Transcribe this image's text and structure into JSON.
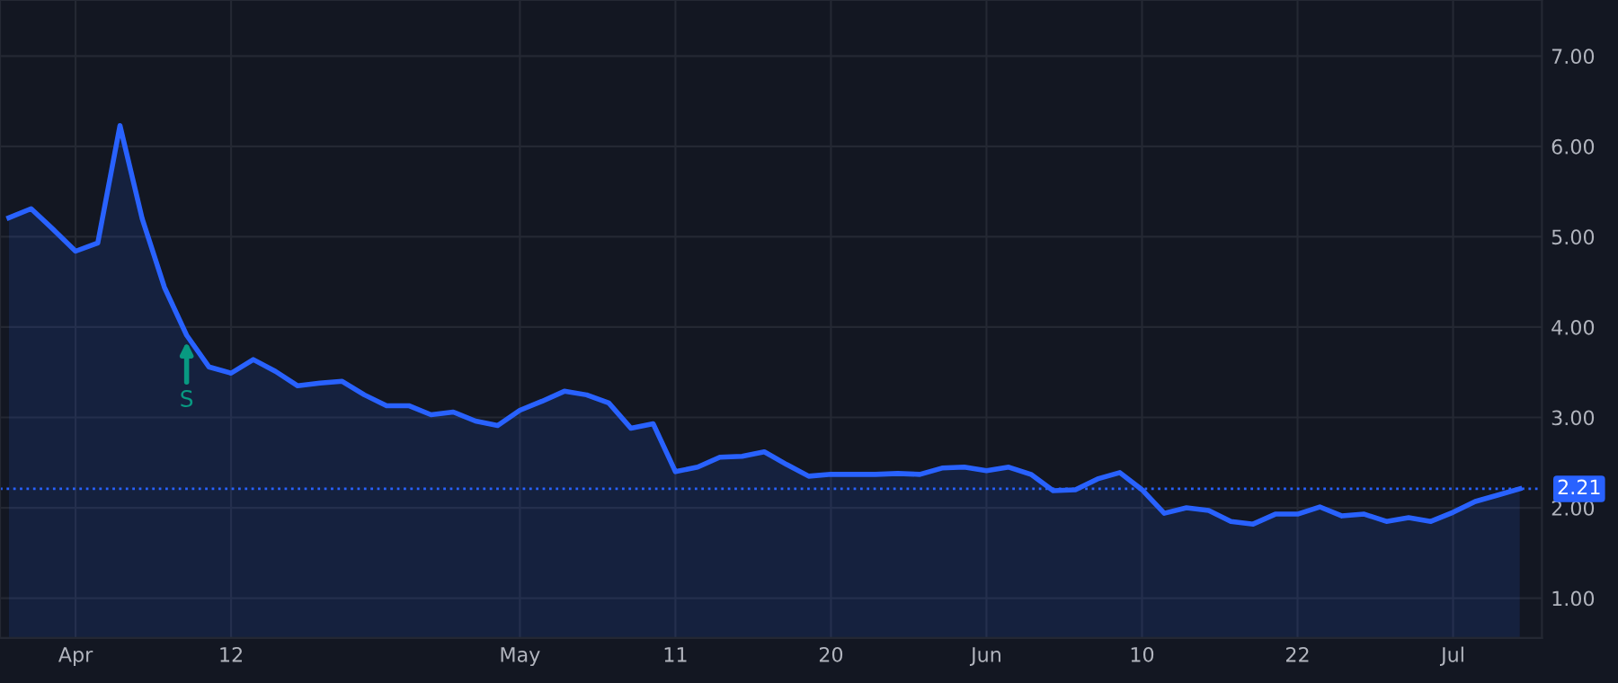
{
  "chart_data": {
    "type": "area",
    "categories": [
      null,
      null,
      null,
      "Apr",
      null,
      null,
      null,
      null,
      null,
      null,
      "12",
      null,
      null,
      null,
      null,
      null,
      null,
      null,
      null,
      null,
      null,
      null,
      null,
      "May",
      null,
      null,
      null,
      null,
      null,
      null,
      "11",
      null,
      null,
      null,
      null,
      null,
      null,
      "20",
      null,
      null,
      null,
      null,
      null,
      null,
      "Jun",
      null,
      null,
      null,
      null,
      null,
      null,
      "10",
      null,
      null,
      null,
      null,
      null,
      null,
      "22",
      null,
      null,
      null,
      null,
      null,
      null,
      "Jul",
      null,
      null,
      null
    ],
    "series": [
      {
        "color": "#2962ff",
        "values": [
          5.21,
          5.31,
          5.08,
          4.84,
          4.93,
          6.23,
          5.2,
          4.44,
          3.91,
          3.56,
          3.49,
          3.64,
          3.51,
          3.35,
          3.38,
          3.4,
          3.25,
          3.13,
          3.13,
          3.03,
          3.06,
          2.96,
          2.91,
          3.08,
          3.18,
          3.29,
          3.25,
          3.16,
          2.88,
          2.93,
          2.4,
          2.45,
          2.56,
          2.57,
          2.62,
          2.48,
          2.35,
          2.37,
          2.37,
          2.37,
          2.38,
          2.37,
          2.44,
          2.45,
          2.41,
          2.45,
          2.37,
          2.19,
          2.2,
          2.32,
          2.39,
          2.2,
          1.94,
          2.0,
          1.97,
          1.85,
          1.82,
          1.93,
          1.93,
          2.01,
          1.91,
          1.93,
          1.85,
          1.89,
          1.85,
          1.95,
          2.07,
          2.14,
          2.21
        ]
      }
    ],
    "ylim": [
      0.56,
      7.62
    ],
    "yticks": [
      {
        "value": 1,
        "label": "1.00"
      },
      {
        "value": 2,
        "label": "2.00"
      },
      {
        "value": 3,
        "label": "3.00"
      },
      {
        "value": 4,
        "label": "4.00"
      },
      {
        "value": 5,
        "label": "5.00"
      },
      {
        "value": 6,
        "label": "6.00"
      },
      {
        "value": 7,
        "label": "7.00"
      }
    ],
    "ref_lines": [
      {
        "axis": "y",
        "value": 2.21,
        "label": "2.21",
        "color": "#2962ff",
        "line_style": "dotted"
      }
    ],
    "annotations": [
      {
        "text": "S",
        "y": 3.84
      }
    ],
    "grid": true,
    "legend": false,
    "marker": "none",
    "line_style": "solid"
  }
}
